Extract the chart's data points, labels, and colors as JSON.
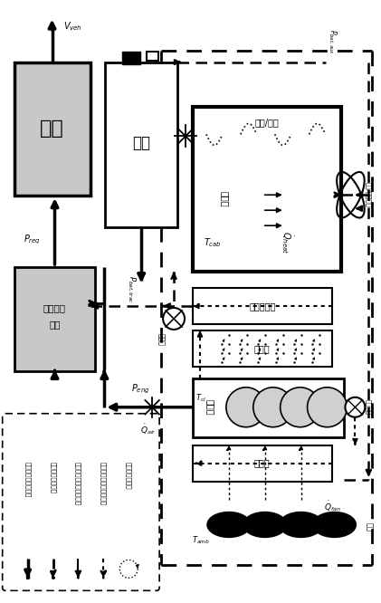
{
  "fig_width": 4.21,
  "fig_height": 6.66,
  "dpi": 100,
  "legend_items": [
    "动力链机械功率路径",
    "动力链电功率路径",
    "热力链发动机热循环路径",
    "热力链驾驶舱热循环路径",
    "环境热传递路径"
  ]
}
